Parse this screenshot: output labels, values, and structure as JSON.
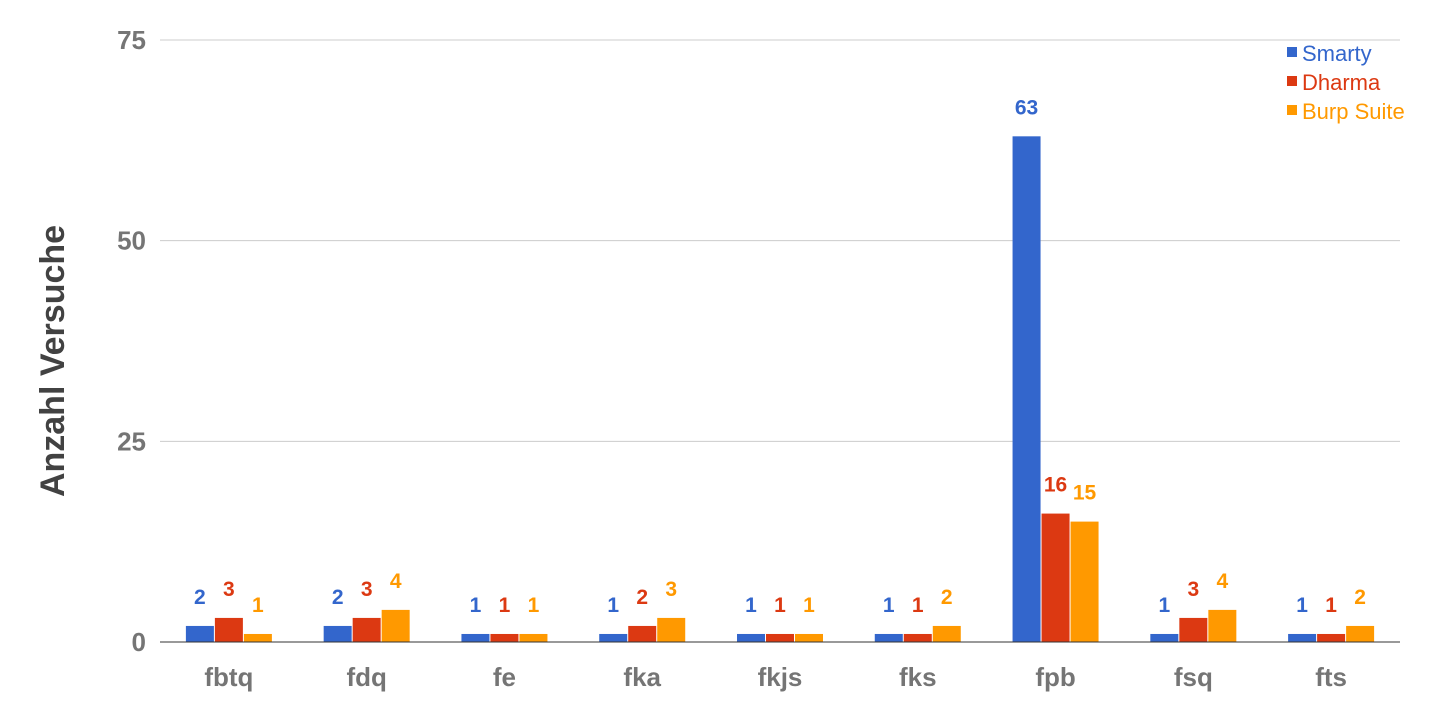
{
  "chart_data": {
    "type": "bar",
    "ylabel": "Anzahl Versuche",
    "xlabel": "",
    "ylim": [
      0,
      75
    ],
    "yticks": [
      "0",
      "25",
      "50",
      "75"
    ],
    "grid": true,
    "legend_position": "top-right",
    "categories": [
      "fbtq",
      "fdq",
      "fe",
      "fka",
      "fkjs",
      "fks",
      "fpb",
      "fsq",
      "fts"
    ],
    "series": [
      {
        "name": "Smarty",
        "color": "#3366cc",
        "values": [
          2,
          2,
          1,
          1,
          1,
          1,
          63,
          1,
          1
        ]
      },
      {
        "name": "Dharma",
        "color": "#dc3912",
        "values": [
          3,
          3,
          1,
          2,
          1,
          1,
          16,
          3,
          1
        ]
      },
      {
        "name": "Burp Suite",
        "color": "#ff9900",
        "values": [
          1,
          4,
          1,
          3,
          1,
          2,
          15,
          4,
          2
        ]
      }
    ]
  }
}
